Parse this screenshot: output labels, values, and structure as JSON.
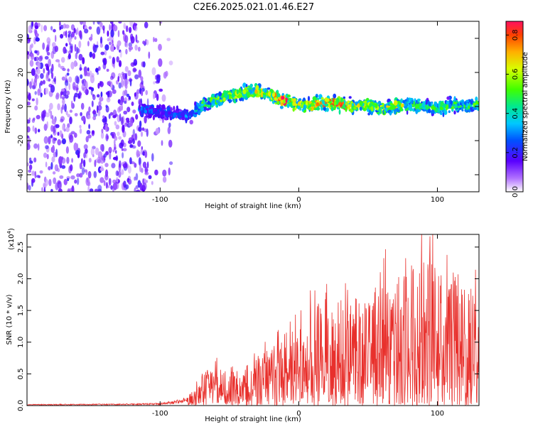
{
  "chart_data": [
    {
      "type": "heatmap",
      "title": "C2E6.2025.021.01.46.E27",
      "xlabel": "Height of straight line (km)",
      "ylabel": "Frequency (Hz)",
      "xlim": [
        -196,
        130
      ],
      "ylim": [
        -50,
        50
      ],
      "x_ticks": [
        -100,
        0,
        100
      ],
      "y_ticks": [
        -40,
        -20,
        0,
        20,
        40
      ],
      "colorbar": {
        "label": "Normalized spectral amplitude",
        "range": [
          0.0,
          0.87
        ],
        "ticks": [
          "0.0",
          "0.2",
          "0.4",
          "0.6",
          "0.8"
        ],
        "tick_values": [
          0.0,
          0.2,
          0.4,
          0.6,
          0.8
        ]
      },
      "noise_region_km": [
        -196,
        -92
      ],
      "signal_start_km": -115,
      "ridge": {
        "x": [
          -115,
          -100,
          -90,
          -80,
          -75,
          -70,
          -60,
          -50,
          -40,
          -30,
          -20,
          -10,
          0,
          10,
          20,
          30,
          40,
          50,
          60,
          70,
          80,
          90,
          100,
          110,
          120,
          130
        ],
        "y": [
          -1,
          -3,
          -4,
          -6,
          -3,
          1,
          4,
          6,
          8,
          9,
          7,
          3,
          1,
          1,
          2,
          1,
          0,
          1,
          -1,
          0,
          1,
          0,
          -1,
          1,
          0,
          2
        ],
        "amplitude": [
          0.3,
          0.25,
          0.25,
          0.3,
          0.35,
          0.45,
          0.5,
          0.55,
          0.6,
          0.65,
          0.6,
          0.85,
          0.6,
          0.7,
          0.75,
          0.82,
          0.6,
          0.55,
          0.6,
          0.65,
          0.5,
          0.45,
          0.45,
          0.5,
          0.45,
          0.5
        ]
      }
    },
    {
      "type": "line",
      "xlabel": "Height of straight line (km)",
      "ylabel": "SNR (10 * v/v)",
      "y_scale_label": "(x10",
      "y_scale_exp": "4",
      "y_scale_close": ")",
      "xlim": [
        -196,
        130
      ],
      "ylim": [
        0,
        27000
      ],
      "x_ticks": [
        -100,
        0,
        100
      ],
      "y_ticks": [
        "0.0",
        "0.5",
        "1.0",
        "1.5",
        "2.0",
        "2.5"
      ],
      "y_tick_values": [
        0,
        5000,
        10000,
        15000,
        20000,
        25000
      ],
      "series_color": "#e8302c",
      "envelope": {
        "x": [
          -196,
          -120,
          -100,
          -90,
          -85,
          -80,
          -75,
          -70,
          -60,
          -50,
          -40,
          -30,
          -20,
          -10,
          0,
          10,
          20,
          30,
          40,
          50,
          60,
          70,
          80,
          90,
          100,
          110,
          120,
          130
        ],
        "y": [
          200,
          300,
          400,
          800,
          1000,
          1500,
          3500,
          5500,
          6000,
          6500,
          7000,
          8000,
          9500,
          10500,
          13000,
          15500,
          17000,
          17500,
          17000,
          18500,
          19500,
          20500,
          22000,
          23500,
          23000,
          21500,
          20000,
          19000
        ]
      }
    }
  ]
}
